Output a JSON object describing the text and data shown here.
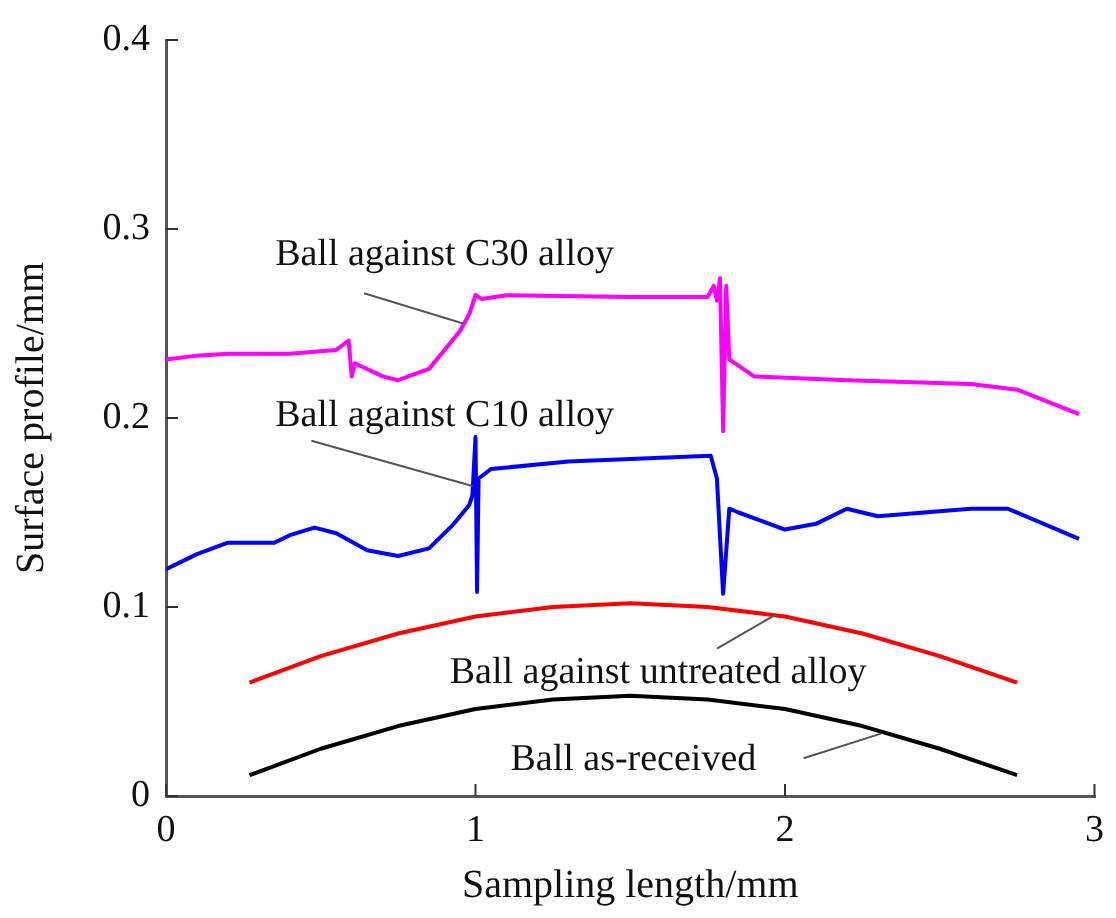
{
  "chart_data": {
    "type": "line",
    "xlabel": "Sampling length/mm",
    "ylabel": "Surface profile/mm",
    "xlim": [
      0,
      3
    ],
    "xticks": [
      0,
      1,
      2,
      3
    ],
    "ylim": [
      0,
      0.4
    ],
    "yticks": [
      0,
      0.1,
      0.2,
      0.3,
      0.4
    ],
    "marker": "none",
    "line_style": "solid",
    "series": [
      {
        "name": "Ball against C30 alloy",
        "color": "#ff00ff",
        "x": [
          0,
          0.1,
          0.2,
          0.4,
          0.55,
          0.59,
          0.6,
          0.61,
          0.7,
          0.75,
          0.85,
          0.95,
          0.98,
          1.0,
          1.02,
          1.1,
          1.5,
          1.75,
          1.77,
          1.78,
          1.79,
          1.8,
          1.81,
          1.82,
          1.9,
          2.2,
          2.6,
          2.75,
          2.95
        ],
        "values": [
          0.231,
          0.233,
          0.234,
          0.234,
          0.236,
          0.241,
          0.222,
          0.229,
          0.222,
          0.22,
          0.226,
          0.246,
          0.255,
          0.265,
          0.263,
          0.265,
          0.264,
          0.264,
          0.27,
          0.262,
          0.274,
          0.193,
          0.27,
          0.231,
          0.222,
          0.22,
          0.218,
          0.215,
          0.202
        ]
      },
      {
        "name": "Ball against C10 alloy",
        "color": "#0000ff",
        "x": [
          0,
          0.1,
          0.2,
          0.35,
          0.4,
          0.48,
          0.55,
          0.65,
          0.75,
          0.85,
          0.93,
          0.98,
          0.99,
          1.0,
          1.005,
          1.01,
          1.05,
          1.3,
          1.6,
          1.76,
          1.78,
          1.8,
          1.82,
          1.85,
          2.0,
          2.1,
          2.2,
          2.3,
          2.6,
          2.72,
          2.95
        ],
        "values": [
          0.12,
          0.128,
          0.134,
          0.134,
          0.138,
          0.142,
          0.139,
          0.13,
          0.127,
          0.131,
          0.144,
          0.154,
          0.159,
          0.19,
          0.108,
          0.168,
          0.173,
          0.177,
          0.179,
          0.18,
          0.168,
          0.107,
          0.152,
          0.15,
          0.141,
          0.144,
          0.152,
          0.148,
          0.152,
          0.152,
          0.136
        ]
      },
      {
        "name": "Ball against untreated alloy",
        "color": "#ff0000",
        "x": [
          0.27,
          0.5,
          0.75,
          1.0,
          1.25,
          1.5,
          1.75,
          2.0,
          2.25,
          2.5,
          2.75
        ],
        "values": [
          0.06,
          0.074,
          0.086,
          0.095,
          0.1,
          0.102,
          0.1,
          0.095,
          0.086,
          0.074,
          0.06
        ]
      },
      {
        "name": "Ball as-received",
        "color": "#000000",
        "x": [
          0.27,
          0.5,
          0.75,
          1.0,
          1.25,
          1.5,
          1.75,
          2.0,
          2.25,
          2.5,
          2.75
        ],
        "values": [
          0.011,
          0.025,
          0.037,
          0.046,
          0.051,
          0.053,
          0.051,
          0.046,
          0.037,
          0.025,
          0.011
        ]
      }
    ]
  }
}
